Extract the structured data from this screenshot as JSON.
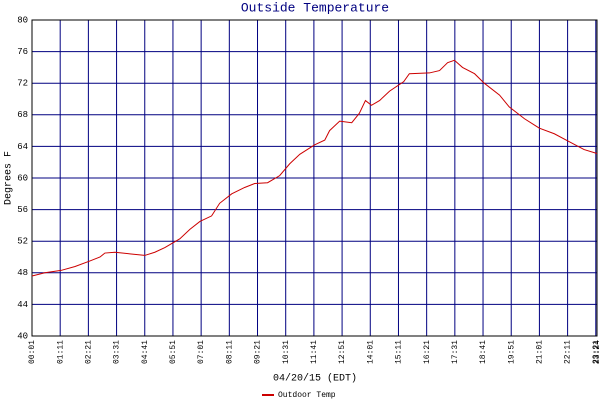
{
  "chart_data": {
    "type": "line",
    "title": "Outside Temperature",
    "xlabel": "04/20/15 (EDT)",
    "ylabel": "Degrees F",
    "x": [
      1,
      33,
      73,
      108,
      145,
      170,
      182,
      207,
      244,
      281,
      306,
      331,
      368,
      393,
      418,
      447,
      467,
      497,
      529,
      554,
      586,
      616,
      641,
      666,
      703,
      728,
      740,
      765,
      795,
      814,
      829,
      844,
      864,
      889,
      924,
      938,
      988,
      1013,
      1033,
      1050,
      1070,
      1100,
      1124,
      1162,
      1186,
      1224,
      1261,
      1298,
      1335,
      1372,
      1404
    ],
    "series": [
      {
        "name": "Outdoor Temp",
        "color": "#cc0000",
        "values": [
          47.6,
          48.0,
          48.3,
          48.8,
          49.5,
          50.0,
          50.5,
          50.6,
          50.4,
          50.2,
          50.6,
          51.2,
          52.3,
          53.5,
          54.5,
          55.2,
          56.8,
          58.0,
          58.8,
          59.3,
          59.4,
          60.3,
          61.8,
          63.0,
          64.2,
          64.8,
          66.0,
          67.2,
          67.0,
          68.2,
          69.8,
          69.2,
          69.8,
          71.0,
          72.2,
          73.2,
          73.3,
          73.6,
          74.6,
          74.9,
          74.0,
          73.2,
          72.0,
          70.5,
          69.0,
          67.5,
          66.3,
          65.6,
          64.6,
          63.6,
          63.1
        ]
      }
    ],
    "xlim": [
      1,
      1404
    ],
    "xticks": [
      {
        "value": 1,
        "label": "00:01"
      },
      {
        "value": 71,
        "label": "01:11"
      },
      {
        "value": 141,
        "label": "02:21"
      },
      {
        "value": 211,
        "label": "03:31"
      },
      {
        "value": 281,
        "label": "04:41"
      },
      {
        "value": 351,
        "label": "05:51"
      },
      {
        "value": 421,
        "label": "07:01"
      },
      {
        "value": 491,
        "label": "08:11"
      },
      {
        "value": 561,
        "label": "09:21"
      },
      {
        "value": 631,
        "label": "10:31"
      },
      {
        "value": 701,
        "label": "11:41"
      },
      {
        "value": 771,
        "label": "12:51"
      },
      {
        "value": 841,
        "label": "14:01"
      },
      {
        "value": 911,
        "label": "15:11"
      },
      {
        "value": 981,
        "label": "16:21"
      },
      {
        "value": 1051,
        "label": "17:31"
      },
      {
        "value": 1121,
        "label": "18:41"
      },
      {
        "value": 1191,
        "label": "19:51"
      },
      {
        "value": 1261,
        "label": "21:01"
      },
      {
        "value": 1331,
        "label": "22:11"
      },
      {
        "value": 1401,
        "label": "23:21"
      },
      {
        "value": 1404,
        "label": "23:24"
      }
    ],
    "ylim": [
      40,
      80
    ],
    "yticks": [
      40,
      44,
      48,
      52,
      56,
      60,
      64,
      68,
      72,
      76,
      80
    ],
    "grid": true,
    "grid_color": "#000080",
    "legend": "bottom"
  }
}
